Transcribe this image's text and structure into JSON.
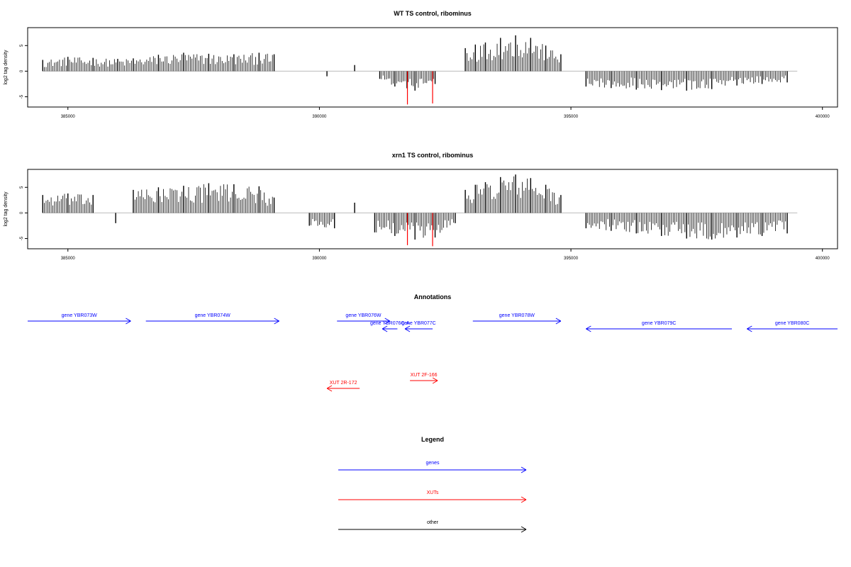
{
  "chart_data": [
    {
      "type": "bar",
      "title": "WT TS control, ribominus",
      "ylabel": "log2 tag density",
      "xlabel": "",
      "xlim": [
        384200,
        400300
      ],
      "ylim": [
        -7,
        8.5
      ],
      "x_ticks": [
        "385000",
        "390000",
        "395000",
        "400000"
      ],
      "y_ticks": [
        "5",
        "0",
        "-5"
      ],
      "series": [
        {
          "color": "#000000",
          "x": [
            384500,
            385000,
            385500,
            385990,
            386300,
            386800,
            387300,
            387800,
            388300,
            388800,
            389100,
            390150,
            390700,
            391200,
            391500,
            391900,
            392300,
            392900,
            393100,
            393300,
            393600,
            393900,
            394200,
            394500,
            394800,
            395300,
            395800,
            396300,
            396800,
            397300,
            397800,
            398300,
            398800,
            399300
          ],
          "values": [
            2.2,
            2.8,
            2.6,
            2.4,
            2.5,
            3.2,
            3.6,
            3.4,
            3.3,
            3.6,
            3.3,
            -1.0,
            1.2,
            -1.5,
            -3.0,
            -3.8,
            -2.5,
            4.5,
            5.2,
            5.6,
            6.5,
            7.0,
            6.5,
            5.0,
            3.3,
            -3.0,
            -3.3,
            -3.6,
            -3.7,
            -3.8,
            -3.5,
            -2.8,
            -2.5,
            -2.2
          ]
        },
        {
          "color": "#ff0000",
          "x": [
            391750,
            392250
          ],
          "values": [
            -6.5,
            -6.3
          ]
        }
      ]
    },
    {
      "type": "bar",
      "title": "xrn1 TS control, ribominus",
      "ylabel": "log2 tag density",
      "xlabel": "",
      "xlim": [
        384200,
        400300
      ],
      "ylim": [
        -7,
        8.5
      ],
      "x_ticks": [
        "385000",
        "390000",
        "395000",
        "400000"
      ],
      "y_ticks": [
        "5",
        "0",
        "-5"
      ],
      "series": [
        {
          "color": "#000000",
          "x": [
            384500,
            385000,
            385500,
            385950,
            386300,
            386800,
            387300,
            387800,
            388300,
            388800,
            389100,
            389800,
            390300,
            390700,
            391100,
            391500,
            391900,
            392300,
            392700,
            392900,
            393100,
            393300,
            393600,
            393900,
            394200,
            394500,
            394800,
            395300,
            395800,
            396300,
            396800,
            397300,
            397800,
            398300,
            398800,
            399300
          ],
          "values": [
            3.5,
            3.8,
            3.5,
            -2.0,
            4.5,
            5.0,
            5.3,
            5.8,
            5.6,
            5.2,
            3.0,
            -2.5,
            -3.0,
            2.0,
            -3.8,
            -4.5,
            -5.2,
            -4.8,
            -2.0,
            4.5,
            5.5,
            6.0,
            7.0,
            7.5,
            6.8,
            5.5,
            3.5,
            -3.0,
            -3.5,
            -4.0,
            -4.5,
            -5.0,
            -5.2,
            -4.8,
            -4.5,
            -4.0
          ]
        },
        {
          "color": "#ff0000",
          "x": [
            391750,
            392250
          ],
          "values": [
            -6.3,
            -6.5
          ]
        }
      ]
    }
  ],
  "annotations": {
    "title": "Annotations",
    "features": [
      {
        "label": "gene YBR073W",
        "type": "gene",
        "color": "#0000ff",
        "start": 384200,
        "end": 386250,
        "strand": "+",
        "row": 1
      },
      {
        "label": "gene YBR074W",
        "type": "gene",
        "color": "#0000ff",
        "start": 386550,
        "end": 389200,
        "strand": "+",
        "row": 1
      },
      {
        "label": "gene YBR076W",
        "type": "gene",
        "color": "#0000ff",
        "start": 390350,
        "end": 391400,
        "strand": "+",
        "row": 1
      },
      {
        "label": "gene YBR076C-A",
        "type": "gene",
        "color": "#0000ff",
        "start": 391250,
        "end": 391550,
        "strand": "-",
        "row": 2
      },
      {
        "label": "gene YBR077C",
        "type": "gene",
        "color": "#0000ff",
        "start": 391700,
        "end": 392250,
        "strand": "-",
        "row": 2
      },
      {
        "label": "gene YBR078W",
        "type": "gene",
        "color": "#0000ff",
        "start": 393050,
        "end": 394800,
        "strand": "+",
        "row": 1
      },
      {
        "label": "gene YBR079C",
        "type": "gene",
        "color": "#0000ff",
        "start": 395300,
        "end": 398200,
        "strand": "-",
        "row": 2
      },
      {
        "label": "gene YBR080C",
        "type": "gene",
        "color": "#0000ff",
        "start": 398500,
        "end": 400300,
        "strand": "-",
        "row": 2
      },
      {
        "label": "XUT 2R-172",
        "type": "XUT",
        "color": "#ff0000",
        "start": 390150,
        "end": 390800,
        "strand": "-",
        "row": 5
      },
      {
        "label": "XUT 2F-166",
        "type": "XUT",
        "color": "#ff0000",
        "start": 391800,
        "end": 392350,
        "strand": "+",
        "row": 4
      }
    ]
  },
  "legend": {
    "title": "Legend",
    "items": [
      {
        "label": "genes",
        "color": "#0000ff"
      },
      {
        "label": "XUTs",
        "color": "#ff0000"
      },
      {
        "label": "other",
        "color": "#000000"
      }
    ]
  }
}
